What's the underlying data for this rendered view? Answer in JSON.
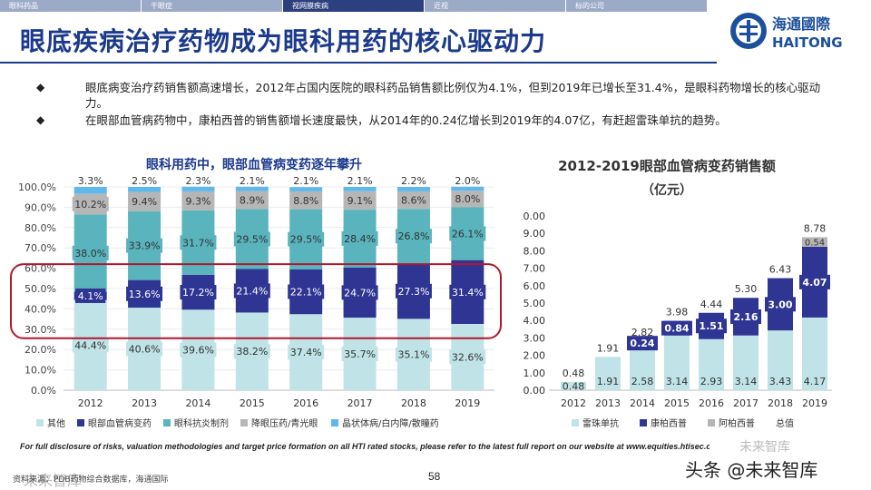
{
  "nav": {
    "tabs": [
      "眼科药品",
      "干眼症",
      "视网膜疾病",
      "近视",
      "标的公司"
    ],
    "active_index": 2
  },
  "title": "眼底疾病治疗药物成为眼科用药的核心驱动力",
  "logo": {
    "cn": "海通國際",
    "en": "HAITONG"
  },
  "bullets": [
    {
      "symbol": "◆",
      "text": "眼底病变治疗药销售额高速增长，2012年占国内医院的眼科药品销售额比例仅为4.1%，但到2019年已增长至31.4%，是眼科药物增长的核心驱动力。"
    },
    {
      "symbol": "◆",
      "text": "在眼部血管病药物中，康柏西普的销售额增长速度最快，从2014年的0.24亿增长到2019年的4.07亿，有赶超雷珠单抗的趋势。"
    }
  ],
  "chart_data": [
    {
      "type": "bar",
      "stacked": true,
      "title": "眼科用药中，眼部血管病变药逐年攀升",
      "categories": [
        "2012",
        "2013",
        "2014",
        "2015",
        "2016",
        "2017",
        "2018",
        "2019"
      ],
      "ylim": [
        0,
        100
      ],
      "yticks": [
        "0.0%",
        "10.0%",
        "20.0%",
        "30.0%",
        "40.0%",
        "50.0%",
        "60.0%",
        "70.0%",
        "80.0%",
        "90.0%",
        "100.0%"
      ],
      "series": [
        {
          "name": "其他",
          "color": "#bfe3e6",
          "values": [
            44.4,
            40.6,
            39.6,
            38.2,
            37.4,
            35.7,
            35.1,
            32.6
          ],
          "labels": [
            "44.4%",
            "40.6%",
            "39.6%",
            "38.2%",
            "37.4%",
            "35.7%",
            "35.1%",
            "32.6%"
          ]
        },
        {
          "name": "眼部血管病变药",
          "color": "#2f3593",
          "values": [
            4.1,
            13.6,
            17.2,
            21.4,
            22.1,
            24.7,
            27.3,
            31.4
          ],
          "labels": [
            "4.1%",
            "13.6%",
            "17.2%",
            "21.4%",
            "22.1%",
            "24.7%",
            "27.3%",
            "31.4%"
          ]
        },
        {
          "name": "眼科抗炎制剂",
          "color": "#59b4bd",
          "values": [
            38.0,
            33.9,
            31.7,
            29.5,
            29.5,
            28.4,
            26.8,
            26.1
          ],
          "labels": [
            "38.0%",
            "33.9%",
            "31.7%",
            "29.5%",
            "29.5%",
            "28.4%",
            "26.8%",
            "26.1%"
          ]
        },
        {
          "name": "降眼压药/青光眼",
          "color": "#b6b6b6",
          "values": [
            10.2,
            9.4,
            9.3,
            8.9,
            8.8,
            9.1,
            8.6,
            8.0
          ],
          "labels": [
            "10.2%",
            "9.4%",
            "9.3%",
            "8.9%",
            "8.8%",
            "9.1%",
            "8.6%",
            "8.0%"
          ]
        },
        {
          "name": "晶状体病/白内障/散瞳药",
          "color": "#5fb8ec",
          "values": [
            3.3,
            2.5,
            2.3,
            2.1,
            2.1,
            2.1,
            2.2,
            2.0
          ],
          "labels": [
            "3.3%",
            "2.5%",
            "2.3%",
            "2.1%",
            "2.1%",
            "2.1%",
            "2.2%",
            "2.0%"
          ]
        }
      ]
    },
    {
      "type": "bar",
      "stacked": true,
      "title": "2012-2019眼部血管病变药销售额",
      "subtitle": "（亿元）",
      "categories": [
        "2012",
        "2013",
        "2014",
        "2015",
        "2016",
        "2017",
        "2018",
        "2019"
      ],
      "ylim": [
        0,
        10
      ],
      "yticks": [
        "0.00",
        "1.00",
        "2.00",
        "3.00",
        "4.00",
        "5.00",
        "6.00",
        "7.00",
        "8.00",
        "9.00",
        "10.00"
      ],
      "series": [
        {
          "name": "雷珠单抗",
          "color": "#bfe3e6",
          "values": [
            0.48,
            1.91,
            2.58,
            3.14,
            2.93,
            3.14,
            3.43,
            4.17
          ],
          "labels": [
            "0.48",
            "1.91",
            "2.58",
            "3.14",
            "2.93",
            "3.14",
            "3.43",
            "4.17"
          ]
        },
        {
          "name": "康柏西普",
          "color": "#2f3593",
          "values": [
            0,
            0,
            0.24,
            0.84,
            1.51,
            2.16,
            3.0,
            4.07
          ],
          "labels": [
            "",
            "",
            "0.24",
            "0.84",
            "1.51",
            "2.16",
            "3.00",
            "4.07"
          ]
        },
        {
          "name": "阿柏西普",
          "color": "#b6b6b6",
          "values": [
            0,
            0,
            0,
            0,
            0,
            0,
            0,
            0.54
          ],
          "labels": [
            "",
            "",
            "",
            "",
            "",
            "",
            "",
            "0.54"
          ]
        }
      ],
      "totals_name": "总值",
      "totals": [
        0.48,
        1.91,
        2.82,
        3.98,
        4.44,
        5.3,
        6.43,
        8.78
      ],
      "total_labels": [
        "0.48",
        "1.91",
        "2.82",
        "3.98",
        "4.44",
        "5.30",
        "6.43",
        "8.78"
      ]
    }
  ],
  "footer": {
    "disclosure": "For full disclosure of risks, valuation methodologies and target price formation on all HTI rated stocks, please refer to the latest full report on our website at www.equities.htisec.com",
    "source": "资料来源：PDB药物综合数据库，海通国际",
    "page": "58",
    "watermark": "头条 @未来智库",
    "watermark_left": "未来智库",
    "watermark_mid": "未来智库"
  }
}
